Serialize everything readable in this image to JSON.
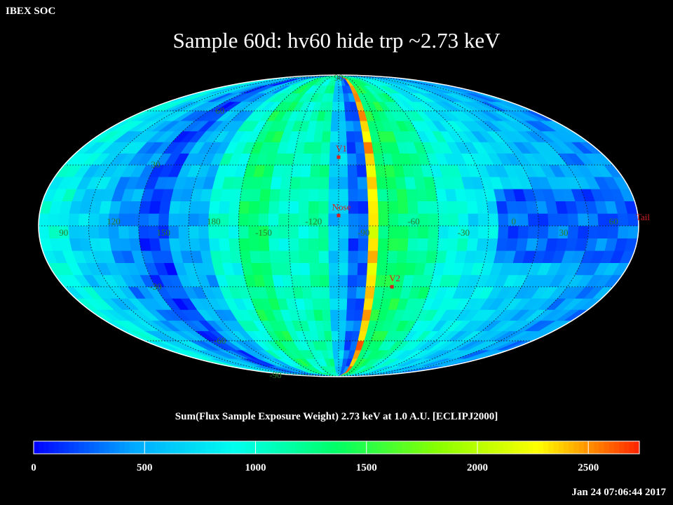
{
  "header": {
    "corner_label": "IBEX SOC",
    "title": "Sample 60d: hv60 hide trp ~2.73 keV"
  },
  "map": {
    "projection": "Mollweide",
    "lat_labels_left": [
      {
        "text": "90",
        "lat": 90
      },
      {
        "text": "60",
        "lat": 60
      },
      {
        "text": "30",
        "lat": 30
      },
      {
        "text": "-30",
        "lat": -30
      },
      {
        "text": "-60",
        "lat": -60
      },
      {
        "text": "-90",
        "lat": -90
      }
    ],
    "lon_labels": [
      {
        "text": "60",
        "lon": 60
      },
      {
        "text": "30",
        "lon": 30
      },
      {
        "text": "0",
        "lon": 0
      },
      {
        "text": "-30",
        "lon": -30
      },
      {
        "text": "-60",
        "lon": -60
      },
      {
        "text": "-90",
        "lon": -90
      },
      {
        "text": "-120",
        "lon": -120
      },
      {
        "text": "-150",
        "lon": -150
      },
      {
        "text": "180",
        "lon": 180
      },
      {
        "text": "150",
        "lon": 150
      },
      {
        "text": "120",
        "lon": 120
      },
      {
        "text": "90",
        "lon": 90
      }
    ],
    "markers": [
      {
        "text": "V1",
        "lon": -105,
        "lat": 34
      },
      {
        "text": "Nose",
        "lon": -105,
        "lat": 5
      },
      {
        "text": "V2",
        "lon": -70,
        "lat": -30
      },
      {
        "text": "Tail",
        "lon": 75,
        "lat": 0
      }
    ],
    "colors": {
      "outline": "#ffffff",
      "grid": "#111111"
    }
  },
  "caption": "Sum(Flux Sample Exposure Weight)  2.73 keV at 1.0 A.U. [ECLIPJ2000]",
  "colorbar": {
    "min": 0,
    "max": 2730,
    "tick_labels": [
      "0",
      "500",
      "1000",
      "1500",
      "2000",
      "2500"
    ],
    "tick_values": [
      0,
      500,
      1000,
      1500,
      2000,
      2500
    ],
    "stops": [
      "#0000ff",
      "#00aaff",
      "#00ffee",
      "#00ff66",
      "#88ff00",
      "#ffff00",
      "#ff2200"
    ]
  },
  "footer": {
    "timestamp": "Jan 24 07:06:44 2017"
  }
}
